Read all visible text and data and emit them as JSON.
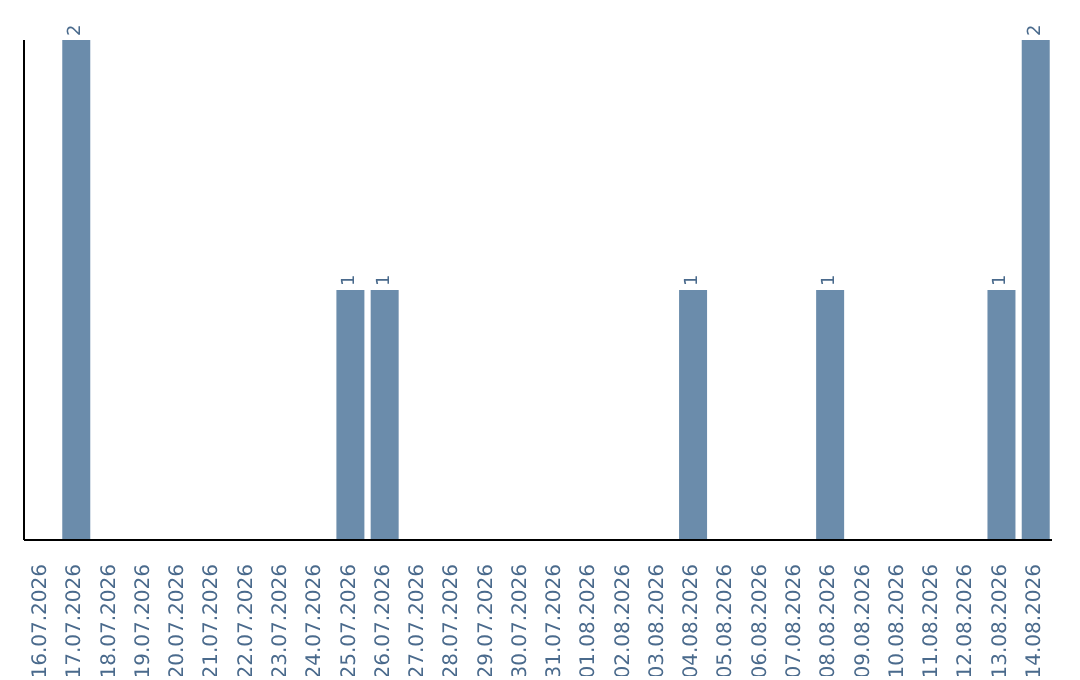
{
  "chart_data": {
    "type": "bar",
    "categories": [
      "16.07.2026",
      "17.07.2026",
      "18.07.2026",
      "19.07.2026",
      "20.07.2026",
      "21.07.2026",
      "22.07.2026",
      "23.07.2026",
      "24.07.2026",
      "25.07.2026",
      "26.07.2026",
      "27.07.2026",
      "28.07.2026",
      "29.07.2026",
      "30.07.2026",
      "31.07.2026",
      "01.08.2026",
      "02.08.2026",
      "03.08.2026",
      "04.08.2026",
      "05.08.2026",
      "06.08.2026",
      "07.08.2026",
      "08.08.2026",
      "09.08.2026",
      "10.08.2026",
      "11.08.2026",
      "12.08.2026",
      "13.08.2026",
      "14.08.2026"
    ],
    "values": [
      null,
      2,
      null,
      null,
      null,
      null,
      null,
      null,
      null,
      1,
      1,
      null,
      null,
      null,
      null,
      null,
      null,
      null,
      null,
      1,
      null,
      null,
      null,
      1,
      null,
      null,
      null,
      null,
      1,
      2
    ],
    "color": "#6b8cab",
    "data_labels": true,
    "grid": false,
    "legend": false
  }
}
